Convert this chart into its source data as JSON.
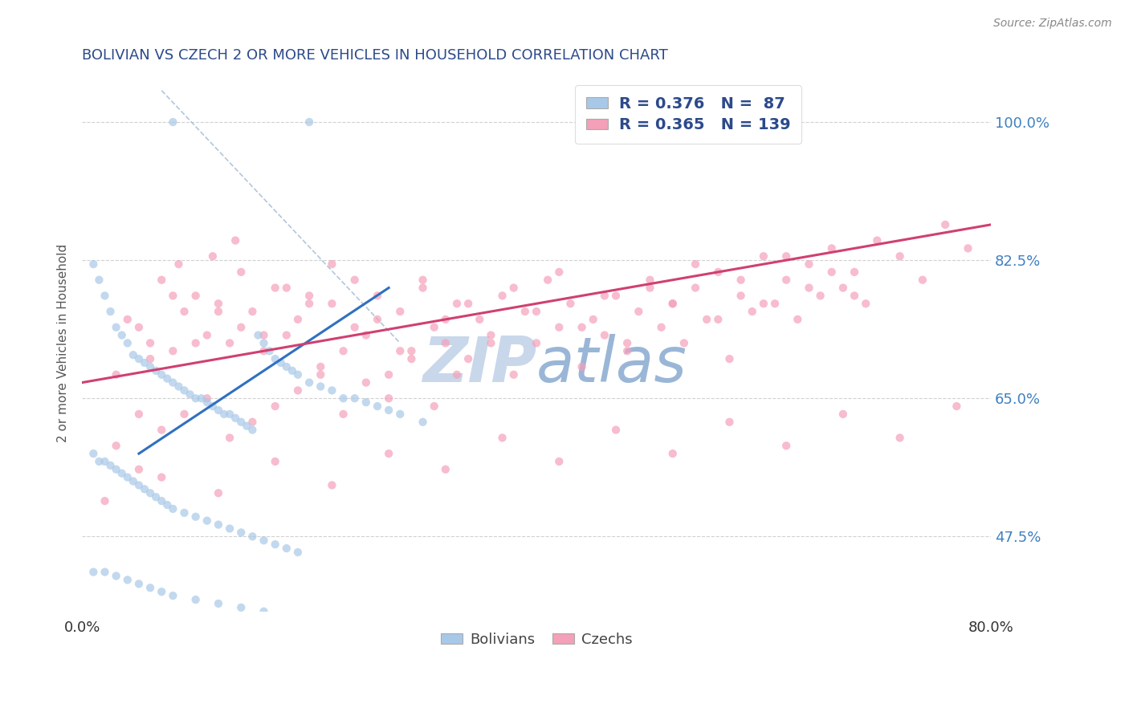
{
  "title": "BOLIVIAN VS CZECH 2 OR MORE VEHICLES IN HOUSEHOLD CORRELATION CHART",
  "source": "Source: ZipAtlas.com",
  "ylabel": "2 or more Vehicles in Household",
  "xmin": 0.0,
  "xmax": 80.0,
  "ymin": 38.0,
  "ymax": 106.0,
  "ytick_labels": [
    "47.5%",
    "65.0%",
    "82.5%",
    "100.0%"
  ],
  "ytick_values": [
    47.5,
    65.0,
    82.5,
    100.0
  ],
  "xtick_labels": [
    "0.0%",
    "80.0%"
  ],
  "xtick_values": [
    0.0,
    80.0
  ],
  "bolivians_R": 0.376,
  "bolivians_N": 87,
  "czechs_R": 0.365,
  "czechs_N": 139,
  "blue_scatter_color": "#a8c8e8",
  "pink_scatter_color": "#f4a0b8",
  "blue_line_color": "#3070c0",
  "pink_line_color": "#d04070",
  "dashed_line_color": "#a0b8d0",
  "title_color": "#2c4a8a",
  "source_color": "#888888",
  "watermark_color": "#c8d8ee",
  "legend_text_color": "#2c4a8a",
  "right_axis_color": "#4080c0",
  "background_color": "#ffffff",
  "blue_line": [
    [
      5.0,
      58.0
    ],
    [
      27.0,
      79.0
    ]
  ],
  "pink_line": [
    [
      0.0,
      67.0
    ],
    [
      80.0,
      87.0
    ]
  ],
  "dashed_line": [
    [
      7.0,
      104.0
    ],
    [
      28.0,
      72.0
    ]
  ],
  "bolivians_x": [
    8.0,
    20.0,
    1.0,
    1.5,
    2.0,
    2.5,
    3.0,
    3.5,
    4.0,
    4.5,
    5.0,
    5.5,
    6.0,
    6.5,
    7.0,
    7.5,
    8.0,
    8.5,
    9.0,
    9.5,
    10.0,
    10.5,
    11.0,
    11.5,
    12.0,
    12.5,
    13.0,
    13.5,
    14.0,
    14.5,
    15.0,
    15.5,
    16.0,
    16.5,
    17.0,
    17.5,
    18.0,
    18.5,
    19.0,
    20.0,
    21.0,
    22.0,
    23.0,
    24.0,
    25.0,
    26.0,
    27.0,
    28.0,
    30.0,
    1.0,
    1.5,
    2.0,
    2.5,
    3.0,
    3.5,
    4.0,
    4.5,
    5.0,
    5.5,
    6.0,
    6.5,
    7.0,
    7.5,
    8.0,
    9.0,
    10.0,
    11.0,
    12.0,
    13.0,
    14.0,
    15.0,
    16.0,
    17.0,
    18.0,
    19.0,
    1.0,
    2.0,
    3.0,
    4.0,
    5.0,
    6.0,
    7.0,
    8.0,
    10.0,
    12.0,
    14.0,
    16.0
  ],
  "bolivians_y": [
    100.0,
    100.0,
    82.0,
    80.0,
    78.0,
    76.0,
    74.0,
    73.0,
    72.0,
    70.5,
    70.0,
    69.5,
    69.0,
    68.5,
    68.0,
    67.5,
    67.0,
    66.5,
    66.0,
    65.5,
    65.0,
    65.0,
    64.5,
    64.0,
    63.5,
    63.0,
    63.0,
    62.5,
    62.0,
    61.5,
    61.0,
    73.0,
    72.0,
    71.0,
    70.0,
    69.5,
    69.0,
    68.5,
    68.0,
    67.0,
    66.5,
    66.0,
    65.0,
    65.0,
    64.5,
    64.0,
    63.5,
    63.0,
    62.0,
    58.0,
    57.0,
    57.0,
    56.5,
    56.0,
    55.5,
    55.0,
    54.5,
    54.0,
    53.5,
    53.0,
    52.5,
    52.0,
    51.5,
    51.0,
    50.5,
    50.0,
    49.5,
    49.0,
    48.5,
    48.0,
    47.5,
    47.0,
    46.5,
    46.0,
    45.5,
    43.0,
    43.0,
    42.5,
    42.0,
    41.5,
    41.0,
    40.5,
    40.0,
    39.5,
    39.0,
    38.5,
    38.0
  ],
  "czechs_x": [
    3.0,
    5.0,
    5.0,
    6.0,
    7.0,
    8.0,
    8.5,
    9.0,
    10.0,
    11.0,
    11.5,
    12.0,
    13.0,
    13.5,
    14.0,
    15.0,
    16.0,
    17.0,
    18.0,
    19.0,
    20.0,
    21.0,
    22.0,
    23.0,
    24.0,
    25.0,
    26.0,
    27.0,
    28.0,
    29.0,
    30.0,
    31.0,
    32.0,
    33.0,
    34.0,
    35.0,
    36.0,
    37.0,
    38.0,
    39.0,
    40.0,
    41.0,
    42.0,
    43.0,
    44.0,
    45.0,
    46.0,
    47.0,
    48.0,
    49.0,
    50.0,
    51.0,
    52.0,
    53.0,
    54.0,
    55.0,
    56.0,
    57.0,
    58.0,
    59.0,
    60.0,
    61.0,
    62.0,
    63.0,
    64.0,
    65.0,
    66.0,
    67.0,
    68.0,
    69.0,
    70.0,
    72.0,
    74.0,
    76.0,
    78.0,
    4.0,
    6.0,
    8.0,
    10.0,
    12.0,
    14.0,
    16.0,
    18.0,
    20.0,
    22.0,
    24.0,
    26.0,
    28.0,
    30.0,
    32.0,
    34.0,
    36.0,
    38.0,
    40.0,
    42.0,
    44.0,
    46.0,
    48.0,
    50.0,
    52.0,
    54.0,
    56.0,
    58.0,
    60.0,
    62.0,
    64.0,
    66.0,
    68.0,
    3.0,
    5.0,
    7.0,
    9.0,
    11.0,
    13.0,
    15.0,
    17.0,
    19.0,
    21.0,
    23.0,
    25.0,
    27.0,
    29.0,
    31.0,
    33.0,
    2.0,
    7.0,
    12.0,
    17.0,
    22.0,
    27.0,
    32.0,
    37.0,
    42.0,
    47.0,
    52.0,
    57.0,
    62.0,
    67.0,
    72.0,
    77.0
  ],
  "czechs_y": [
    68.0,
    63.0,
    74.0,
    72.0,
    80.0,
    71.0,
    82.0,
    76.0,
    78.0,
    73.0,
    83.0,
    77.0,
    72.0,
    85.0,
    74.0,
    76.0,
    71.0,
    79.0,
    73.0,
    75.0,
    78.0,
    69.0,
    77.0,
    71.0,
    80.0,
    73.0,
    75.0,
    68.0,
    76.0,
    71.0,
    79.0,
    74.0,
    72.0,
    77.0,
    70.0,
    75.0,
    73.0,
    78.0,
    68.0,
    76.0,
    72.0,
    80.0,
    74.0,
    77.0,
    69.0,
    75.0,
    73.0,
    78.0,
    71.0,
    76.0,
    80.0,
    74.0,
    77.0,
    72.0,
    79.0,
    75.0,
    81.0,
    70.0,
    78.0,
    76.0,
    83.0,
    77.0,
    80.0,
    75.0,
    82.0,
    78.0,
    84.0,
    79.0,
    81.0,
    77.0,
    85.0,
    83.0,
    80.0,
    87.0,
    84.0,
    75.0,
    70.0,
    78.0,
    72.0,
    76.0,
    81.0,
    73.0,
    79.0,
    77.0,
    82.0,
    74.0,
    78.0,
    71.0,
    80.0,
    75.0,
    77.0,
    72.0,
    79.0,
    76.0,
    81.0,
    74.0,
    78.0,
    72.0,
    79.0,
    77.0,
    82.0,
    75.0,
    80.0,
    77.0,
    83.0,
    79.0,
    81.0,
    78.0,
    59.0,
    56.0,
    61.0,
    63.0,
    65.0,
    60.0,
    62.0,
    64.0,
    66.0,
    68.0,
    63.0,
    67.0,
    65.0,
    70.0,
    64.0,
    68.0,
    52.0,
    55.0,
    53.0,
    57.0,
    54.0,
    58.0,
    56.0,
    60.0,
    57.0,
    61.0,
    58.0,
    62.0,
    59.0,
    63.0,
    60.0,
    64.0
  ]
}
